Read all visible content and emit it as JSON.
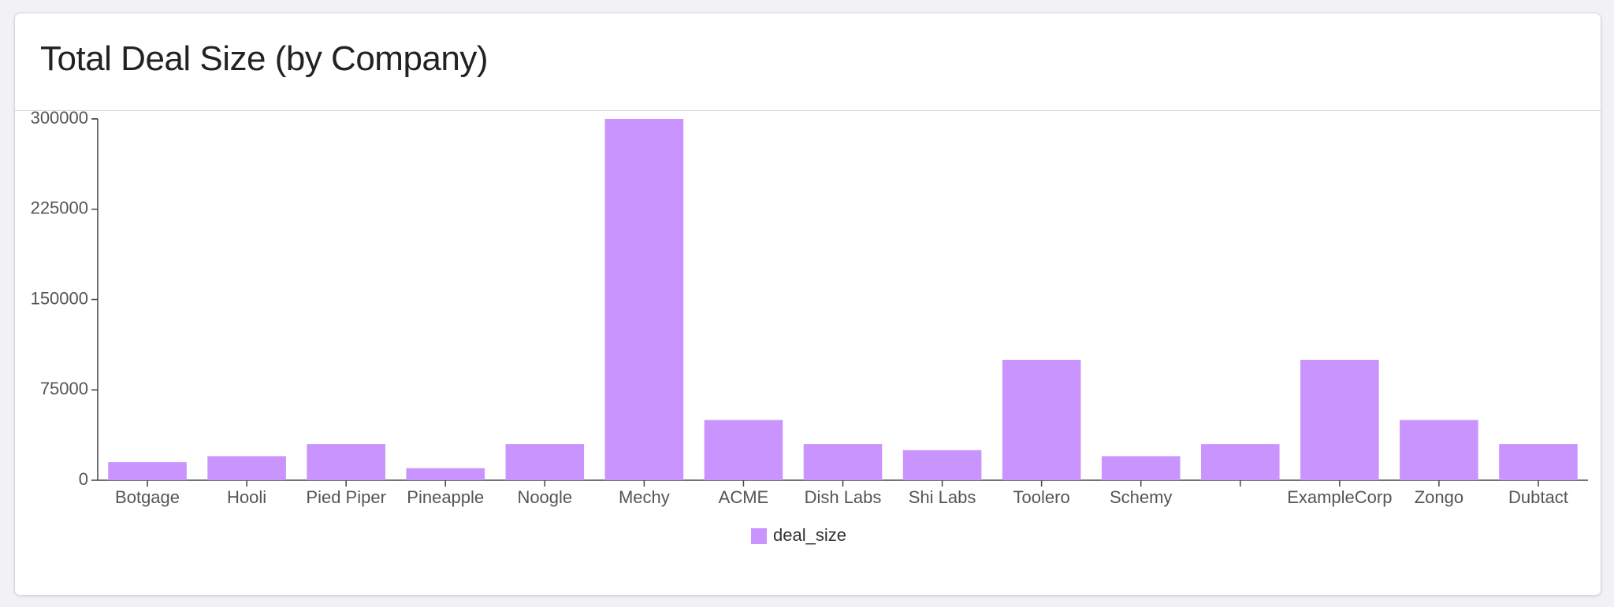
{
  "card": {
    "title": "Total Deal Size (by Company)"
  },
  "chart_data": {
    "type": "bar",
    "title": "Total Deal Size (by Company)",
    "xlabel": "",
    "ylabel": "",
    "categories": [
      "Botgage",
      "Hooli",
      "Pied Piper",
      "Pineapple",
      "Noogle",
      "Mechy",
      "ACME",
      "Dish Labs",
      "Shi Labs",
      "Toolero",
      "Schemy",
      "",
      "ExampleCorp",
      "Zongo",
      "Dubtact"
    ],
    "series": [
      {
        "name": "deal_size",
        "color": "#c994fe",
        "values": [
          15000,
          20000,
          30000,
          10000,
          30000,
          300000,
          50000,
          30000,
          25000,
          100000,
          20000,
          30000,
          100000,
          50000,
          30000
        ]
      }
    ],
    "ylim": [
      0,
      300000
    ],
    "yticks": [
      0,
      75000,
      150000,
      225000,
      300000
    ],
    "grid": false,
    "legend": "bottom-center"
  }
}
